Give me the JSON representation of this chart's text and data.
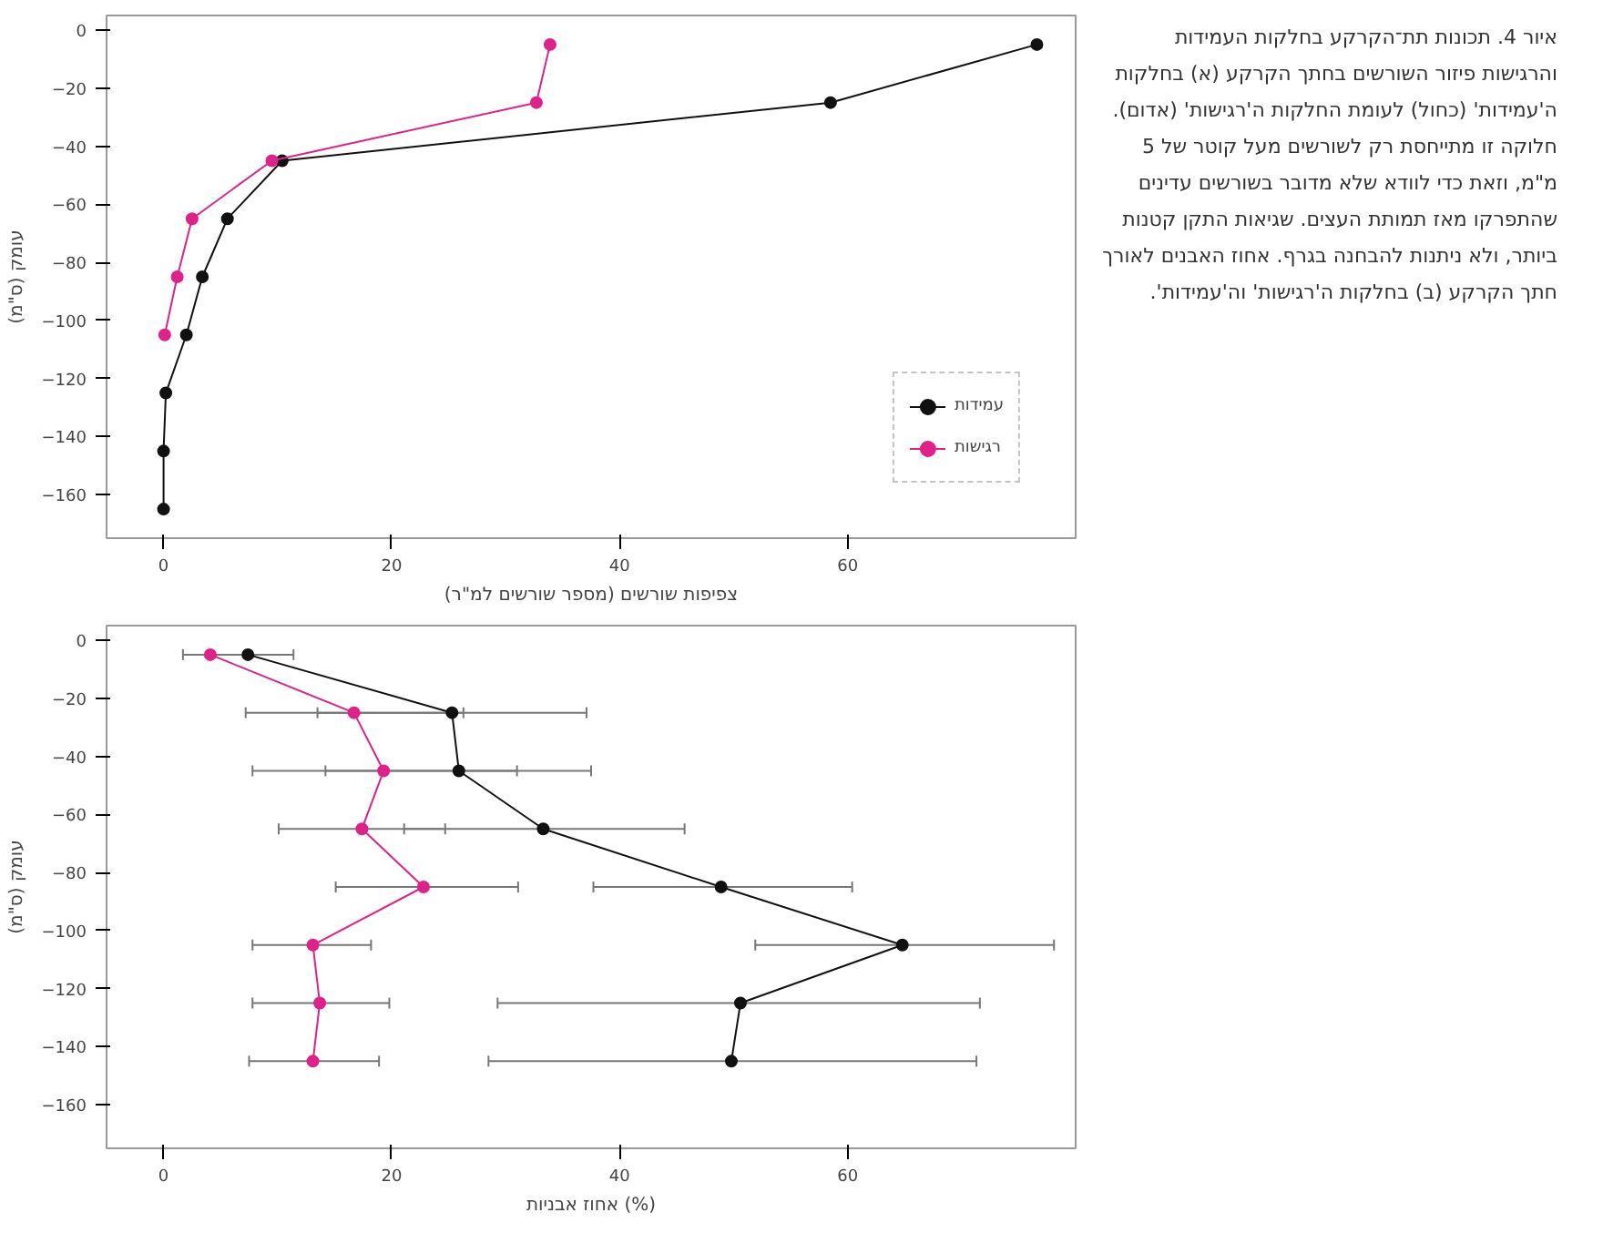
{
  "chart_data": [
    {
      "type": "line",
      "xlabel": "צפיפות שורשים (מספר שורשים למ\"ר)",
      "ylabel": "עומק (ס\"מ)",
      "xlim": [
        -5,
        80
      ],
      "ylim": [
        -175,
        5
      ],
      "xticks": [
        0,
        20,
        40,
        60
      ],
      "yticks": [
        0,
        -20,
        -40,
        -60,
        -80,
        -100,
        -120,
        -140,
        -160
      ],
      "grid": false,
      "legend": "bottom right",
      "marker": "circle",
      "line_style": "solid",
      "annotations": [
        "איור 4. תכונות תת־הקרקע בחלקות העמידות והרגישות פיזור השורשים בחתך הקרקע (א) בחלקות ה'עמידות' (כחול) לעומת החלקות ה'רגישות' (אדום). חלוקה זו מתייחסת רק לשורשים מעל קוטר של 5 מ\"מ, וזאת כדי לוודא שלא מדובר בשורשים עדינים שהתפרקו מאז תמותת העצים. שגיאות התקן קטנות ביותר, ולא ניתנות להבחנה בגרף. אחוז האבנים לאורך חתך הקרקע (ב) בחלקות ה'רגישות' וה'עמידות'."
      ],
      "series": [
        {
          "name": "עמידות",
          "color": "#111111",
          "x": [
            76.6,
            58.5,
            10.4,
            5.6,
            3.4,
            2.0,
            0.2,
            0,
            0
          ],
          "values": [
            -5,
            -25,
            -45,
            -65,
            -85,
            -105,
            -125,
            -145,
            -165
          ]
        },
        {
          "name": "רגישות",
          "color": "#e0218a",
          "x": [
            33.9,
            32.7,
            9.5,
            2.5,
            1.2,
            0.1
          ],
          "values": [
            -5,
            -25,
            -45,
            -65,
            -85,
            -105
          ]
        }
      ]
    },
    {
      "type": "line",
      "xlabel": "אחוז אבניות (%)",
      "ylabel": "עומק (ס\"מ)",
      "xlim": [
        -5,
        80
      ],
      "ylim": [
        -175,
        5
      ],
      "xticks": [
        0,
        20,
        40,
        60
      ],
      "yticks": [
        0,
        -20,
        -40,
        -60,
        -80,
        -100,
        -120,
        -140,
        -160
      ],
      "grid": false,
      "marker": "circle",
      "line_style": "solid",
      "series": [
        {
          "color": "#111111",
          "x": [
            7.4,
            25.3,
            25.9,
            33.3,
            48.9,
            64.8,
            50.6,
            49.8
          ],
          "values": [
            -5,
            -25,
            -45,
            -65,
            -85,
            -105,
            -125,
            -145
          ],
          "xerrors": [
            [
              1.7,
              11.4
            ],
            [
              13.5,
              37.1
            ],
            [
              14.2,
              37.5
            ],
            [
              21.1,
              45.7
            ],
            [
              37.7,
              60.4
            ],
            [
              51.9,
              78.1
            ],
            [
              29.3,
              71.6
            ],
            [
              28.5,
              71.3
            ]
          ]
        },
        {
          "color": "#e0218a",
          "x": [
            4.1,
            16.7,
            19.3,
            17.4,
            22.8,
            13.1,
            13.7,
            13.1
          ],
          "values": [
            -5,
            -25,
            -45,
            -65,
            -85,
            -105,
            -125,
            -145
          ],
          "xerrors": [
            null,
            [
              7.2,
              26.3
            ],
            [
              7.8,
              31.0
            ],
            [
              10.1,
              24.7
            ],
            [
              15.1,
              31.1
            ],
            [
              7.8,
              18.2
            ],
            [
              7.8,
              19.8
            ],
            [
              7.5,
              18.9
            ]
          ]
        }
      ]
    }
  ]
}
